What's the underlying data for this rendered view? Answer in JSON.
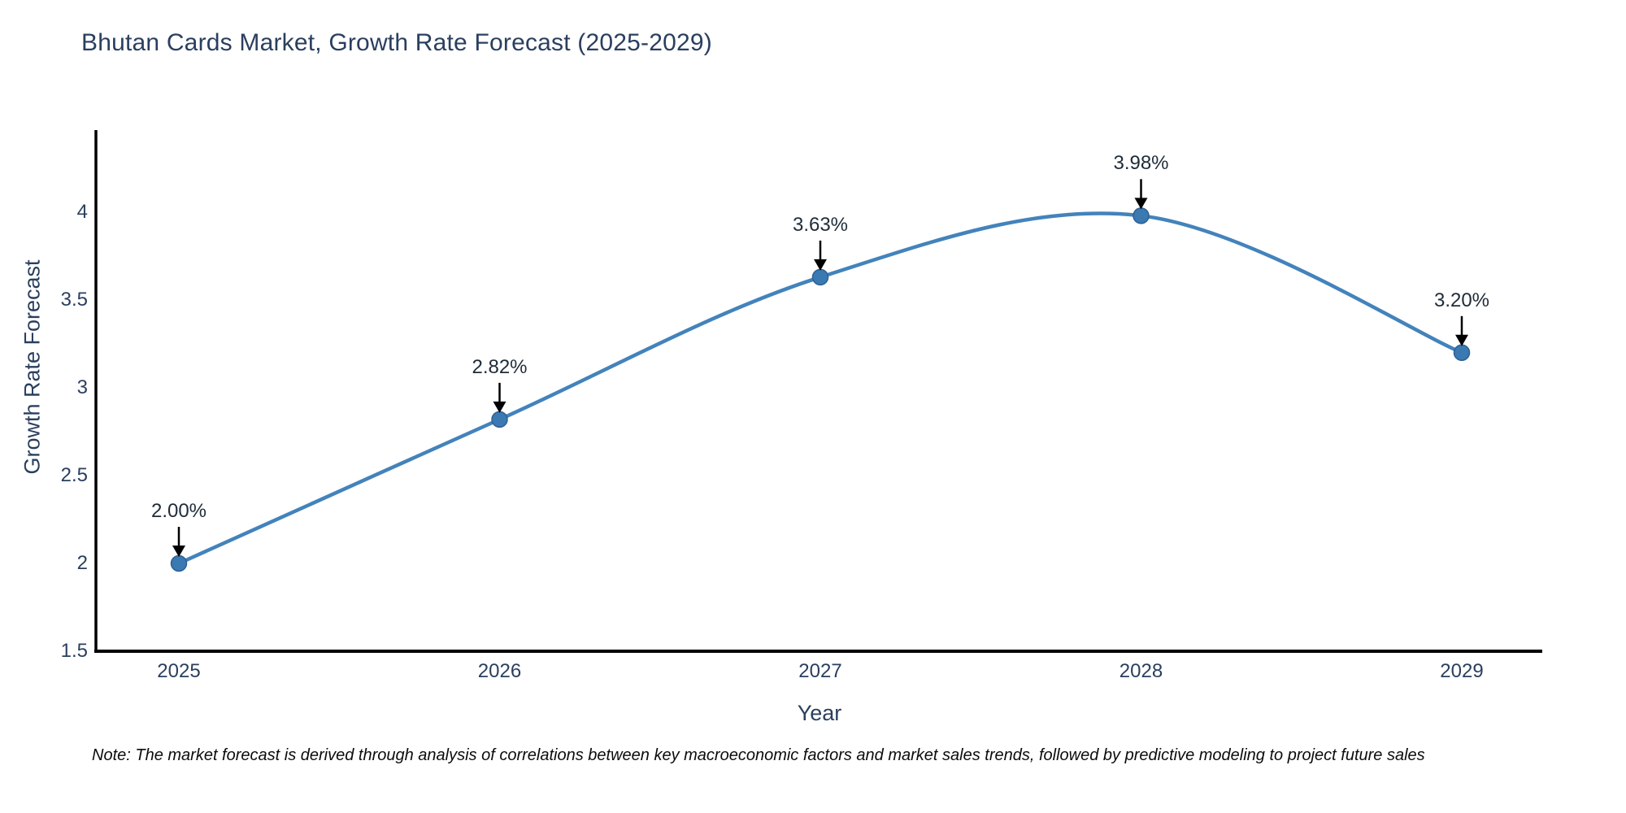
{
  "chart_data": {
    "type": "line",
    "title": "Bhutan Cards Market, Growth Rate Forecast (2025-2029)",
    "xlabel": "Year",
    "ylabel": "Growth Rate Forecast",
    "x": [
      2025,
      2026,
      2027,
      2028,
      2029
    ],
    "x_tick_labels": [
      "2025",
      "2026",
      "2027",
      "2028",
      "2029"
    ],
    "series": [
      {
        "name": "Growth Rate Forecast",
        "values": [
          2.0,
          2.82,
          3.63,
          3.98,
          3.2
        ],
        "point_labels": [
          "2.00%",
          "2.82%",
          "3.63%",
          "3.98%",
          "3.20%"
        ]
      }
    ],
    "y_ticks": [
      1.5,
      2,
      2.5,
      3,
      3.5,
      4
    ],
    "ylim": [
      1.5,
      4.64
    ],
    "xlim": [
      2024.74,
      2029.25
    ],
    "grid": false,
    "legend": false,
    "line_style": "spline",
    "colors": {
      "line": "#4383bb",
      "marker_fill": "#3a79b2",
      "marker_edge": "#2d6193",
      "axis_line": "#000000",
      "text": "#2a3f5f",
      "annotation_text": "#1f2c38",
      "annotation_arrow": "#000000"
    },
    "note": "Note: The market forecast is derived through analysis of correlations between key macroeconomic factors and market sales trends, followed by predictive modeling to project future sales"
  }
}
